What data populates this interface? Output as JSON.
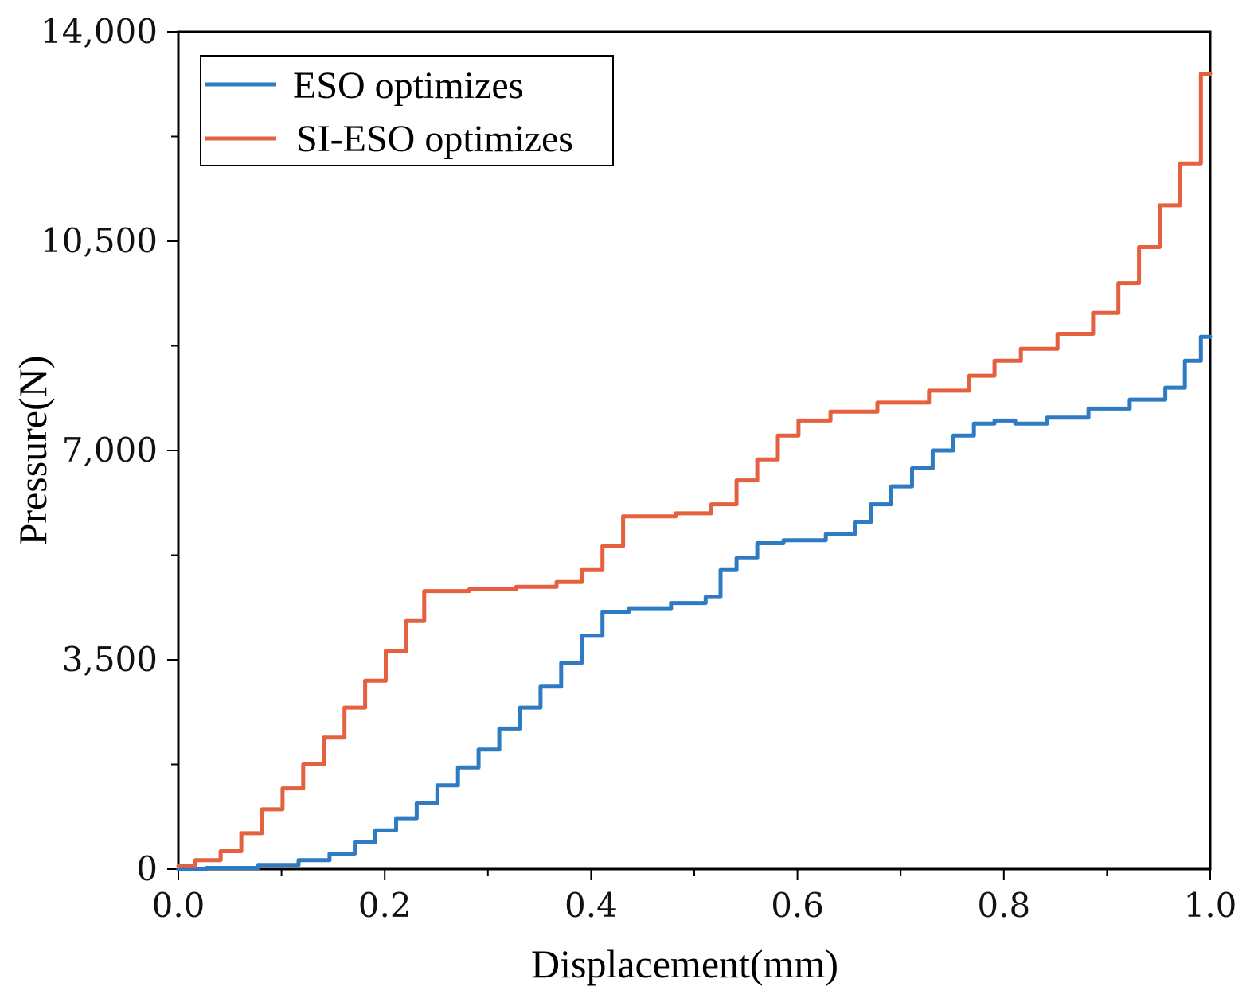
{
  "chart_data": {
    "type": "line",
    "xlabel": "Displacement(mm)",
    "ylabel": "Pressure(N)",
    "xlim": [
      0,
      1.0
    ],
    "ylim": [
      0,
      14000
    ],
    "x_ticks": [
      0.0,
      0.2,
      0.4,
      0.6,
      0.8,
      1.0
    ],
    "x_tick_labels": [
      "0.0",
      "0.2",
      "0.4",
      "0.6",
      "0.8",
      "1.0"
    ],
    "y_ticks": [
      0,
      3500,
      7000,
      10500,
      14000
    ],
    "y_tick_labels": [
      "0",
      "3,500",
      "7,000",
      "10,500",
      "14,000"
    ],
    "legend_position": "top-left",
    "series": [
      {
        "name": "ESO optimizes",
        "color": "#2e7bc4",
        "x": [
          0.0,
          0.05,
          0.1,
          0.13,
          0.16,
          0.18,
          0.2,
          0.22,
          0.24,
          0.26,
          0.28,
          0.3,
          0.32,
          0.34,
          0.36,
          0.38,
          0.4,
          0.42,
          0.45,
          0.5,
          0.52,
          0.53,
          0.55,
          0.57,
          0.6,
          0.65,
          0.66,
          0.68,
          0.7,
          0.72,
          0.74,
          0.76,
          0.78,
          0.8,
          0.82,
          0.86,
          0.9,
          0.94,
          0.97,
          0.98,
          1.0
        ],
        "values": [
          0,
          20,
          70,
          150,
          260,
          450,
          650,
          850,
          1100,
          1400,
          1700,
          2000,
          2350,
          2700,
          3050,
          3450,
          3900,
          4300,
          4350,
          4450,
          4550,
          5000,
          5200,
          5450,
          5500,
          5600,
          5800,
          6100,
          6400,
          6700,
          7000,
          7250,
          7450,
          7500,
          7450,
          7550,
          7700,
          7850,
          8050,
          8500,
          8900
        ]
      },
      {
        "name": "SI-ESO optimizes",
        "color": "#e4603f",
        "x": [
          0.0,
          0.03,
          0.05,
          0.07,
          0.09,
          0.11,
          0.13,
          0.15,
          0.17,
          0.19,
          0.21,
          0.23,
          0.245,
          0.26,
          0.3,
          0.35,
          0.38,
          0.4,
          0.42,
          0.44,
          0.46,
          0.5,
          0.53,
          0.55,
          0.57,
          0.59,
          0.61,
          0.65,
          0.7,
          0.75,
          0.78,
          0.8,
          0.83,
          0.87,
          0.9,
          0.92,
          0.94,
          0.96,
          0.98,
          1.0
        ],
        "values": [
          50,
          150,
          300,
          600,
          1000,
          1350,
          1750,
          2200,
          2700,
          3150,
          3650,
          4150,
          4650,
          4650,
          4680,
          4720,
          4800,
          5000,
          5400,
          5900,
          5900,
          5950,
          6100,
          6500,
          6850,
          7250,
          7500,
          7650,
          7800,
          8000,
          8250,
          8500,
          8700,
          8950,
          9300,
          9800,
          10400,
          11100,
          11800,
          13300
        ]
      }
    ]
  }
}
